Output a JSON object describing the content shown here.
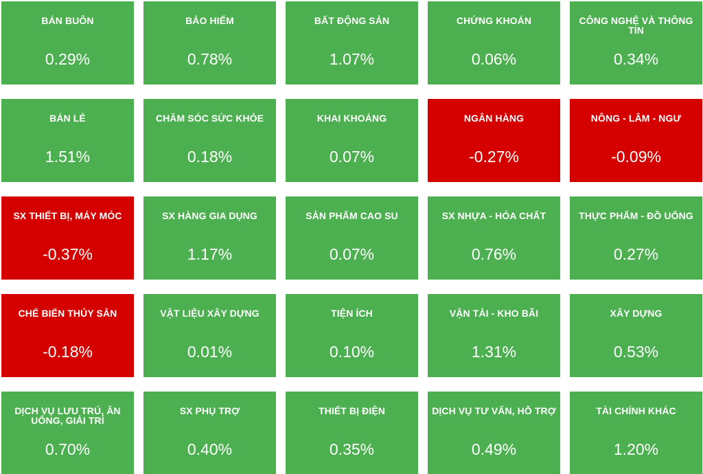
{
  "colors": {
    "up": "#4caf50",
    "down": "#d50000",
    "text": "#ffffff"
  },
  "sectors": [
    {
      "name": "BÁN BUÔN",
      "change": "0.29%",
      "trend": "up"
    },
    {
      "name": "BẢO HIỂM",
      "change": "0.78%",
      "trend": "up"
    },
    {
      "name": "BẤT ĐỘNG SẢN",
      "change": "1.07%",
      "trend": "up"
    },
    {
      "name": "CHỨNG KHOÁN",
      "change": "0.06%",
      "trend": "up"
    },
    {
      "name": "CÔNG NGHỆ VÀ THÔNG TIN",
      "change": "0.34%",
      "trend": "up"
    },
    {
      "name": "BÁN LẺ",
      "change": "1.51%",
      "trend": "up"
    },
    {
      "name": "CHĂM SÓC SỨC KHỎE",
      "change": "0.18%",
      "trend": "up"
    },
    {
      "name": "KHAI KHOÁNG",
      "change": "0.07%",
      "trend": "up"
    },
    {
      "name": "NGÂN HÀNG",
      "change": "-0.27%",
      "trend": "down"
    },
    {
      "name": "NÔNG - LÂM - NGƯ",
      "change": "-0.09%",
      "trend": "down"
    },
    {
      "name": "SX THIẾT BỊ, MÁY MÓC",
      "change": "-0.37%",
      "trend": "down"
    },
    {
      "name": "SX HÀNG GIA DỤNG",
      "change": "1.17%",
      "trend": "up"
    },
    {
      "name": "SẢN PHẨM CAO SU",
      "change": "0.07%",
      "trend": "up"
    },
    {
      "name": "SX NHỰA - HÓA CHẤT",
      "change": "0.76%",
      "trend": "up"
    },
    {
      "name": "THỰC PHẨM - ĐỒ UỐNG",
      "change": "0.27%",
      "trend": "up"
    },
    {
      "name": "CHẾ BIẾN THỦY SẢN",
      "change": "-0.18%",
      "trend": "down"
    },
    {
      "name": "VẬT LIỆU XÂY DỰNG",
      "change": "0.01%",
      "trend": "up"
    },
    {
      "name": "TIỆN ÍCH",
      "change": "0.10%",
      "trend": "up"
    },
    {
      "name": "VẬN TẢI - KHO BÃI",
      "change": "1.31%",
      "trend": "up"
    },
    {
      "name": "XÂY DỰNG",
      "change": "0.53%",
      "trend": "up"
    },
    {
      "name": "DỊCH VỤ LƯU TRÚ, ĂN UỐNG, GIẢI TRÍ",
      "change": "0.70%",
      "trend": "up"
    },
    {
      "name": "SX PHỤ TRỢ",
      "change": "0.40%",
      "trend": "up"
    },
    {
      "name": "THIẾT BỊ ĐIỆN",
      "change": "0.35%",
      "trend": "up"
    },
    {
      "name": "DỊCH VỤ TƯ VẤN, HỖ TRỢ",
      "change": "0.49%",
      "trend": "up"
    },
    {
      "name": "TÀI CHÍNH KHÁC",
      "change": "1.20%",
      "trend": "up"
    }
  ]
}
